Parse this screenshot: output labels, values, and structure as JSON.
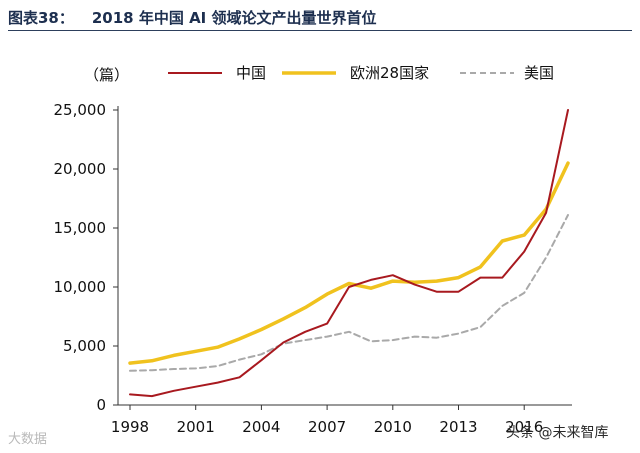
{
  "header": {
    "figure_number": "图表38：",
    "title": "2018 年中国 AI 领域论文产出量世界首位"
  },
  "watermarks": {
    "bottom_left": "大数据",
    "bottom_right": "头条 @未来智库"
  },
  "chart_data": {
    "type": "line",
    "ylabel": "（篇）",
    "xlabel": "",
    "x": [
      1998,
      1999,
      2000,
      2001,
      2002,
      2003,
      2004,
      2005,
      2006,
      2007,
      2008,
      2009,
      2010,
      2011,
      2012,
      2013,
      2014,
      2015,
      2016,
      2017,
      2018
    ],
    "x_ticks": [
      1998,
      2001,
      2004,
      2007,
      2010,
      2013,
      2016
    ],
    "x_tick_labels": [
      "1998",
      "2001",
      "2004",
      "2007",
      "2010",
      "2013",
      "2016"
    ],
    "xlim": [
      1998,
      2018
    ],
    "ylim": [
      0,
      25000
    ],
    "y_ticks": [
      0,
      5000,
      10000,
      15000,
      20000,
      25000
    ],
    "y_tick_labels": [
      "0",
      "5,000",
      "10,000",
      "15,000",
      "20,000",
      "25,000"
    ],
    "grid": false,
    "legend_position": "top",
    "series": [
      {
        "name": "中国",
        "color": "#a8191f",
        "style": "solid",
        "values": [
          900,
          750,
          1200,
          1550,
          1900,
          2350,
          3800,
          5300,
          6200,
          6900,
          10000,
          10600,
          11000,
          10200,
          9600,
          9600,
          10800,
          10800,
          13000,
          16300,
          25000
        ]
      },
      {
        "name": "欧洲28国家",
        "color": "#f0c21e",
        "style": "solid",
        "values": [
          3550,
          3750,
          4200,
          4550,
          4900,
          5600,
          6400,
          7300,
          8250,
          9400,
          10300,
          9900,
          10500,
          10400,
          10500,
          10800,
          11700,
          13900,
          14400,
          16600,
          20500
        ]
      },
      {
        "name": "美国",
        "color": "#a9a9a9",
        "style": "dashed",
        "values": [
          2900,
          2950,
          3050,
          3100,
          3300,
          3850,
          4300,
          5200,
          5500,
          5800,
          6200,
          5400,
          5500,
          5800,
          5700,
          6050,
          6600,
          8400,
          9500,
          12500,
          16100
        ]
      }
    ]
  }
}
